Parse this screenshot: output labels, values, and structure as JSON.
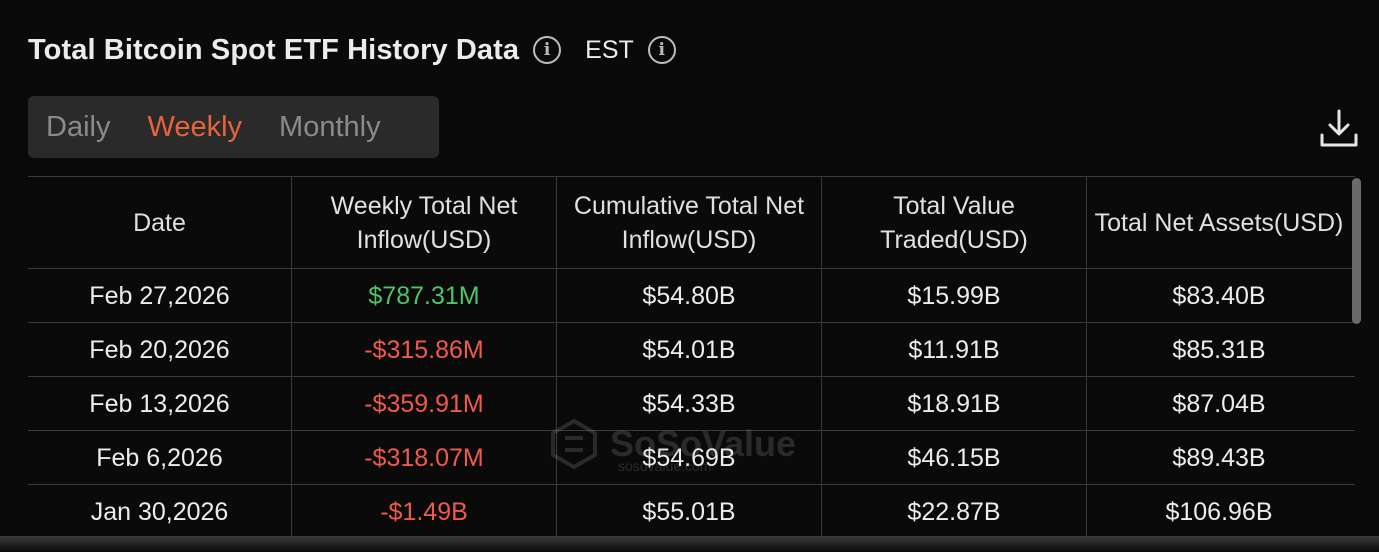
{
  "header": {
    "title": "Total Bitcoin Spot ETF History Data",
    "timezone": "EST"
  },
  "tabs": [
    {
      "label": "Daily",
      "active": false
    },
    {
      "label": "Weekly",
      "active": true
    },
    {
      "label": "Monthly",
      "active": false
    }
  ],
  "table": {
    "columns": [
      "Date",
      "Weekly Total Net Inflow(USD)",
      "Cumulative Total Net Inflow(USD)",
      "Total Value Traded(USD)",
      "Total Net Assets(USD)"
    ],
    "rows": [
      {
        "date": "Feb 27,2026",
        "weekly_net_inflow": "$787.31M",
        "cumulative_net_inflow": "$54.80B",
        "value_traded": "$15.99B",
        "net_assets": "$83.40B"
      },
      {
        "date": "Feb 20,2026",
        "weekly_net_inflow": "-$315.86M",
        "cumulative_net_inflow": "$54.01B",
        "value_traded": "$11.91B",
        "net_assets": "$85.31B"
      },
      {
        "date": "Feb 13,2026",
        "weekly_net_inflow": "-$359.91M",
        "cumulative_net_inflow": "$54.33B",
        "value_traded": "$18.91B",
        "net_assets": "$87.04B"
      },
      {
        "date": "Feb 6,2026",
        "weekly_net_inflow": "-$318.07M",
        "cumulative_net_inflow": "$54.69B",
        "value_traded": "$46.15B",
        "net_assets": "$89.43B"
      },
      {
        "date": "Jan 30,2026",
        "weekly_net_inflow": "-$1.49B",
        "cumulative_net_inflow": "$55.01B",
        "value_traded": "$22.87B",
        "net_assets": "$106.96B"
      }
    ]
  },
  "watermark": {
    "brand": "SoSoValue",
    "url": "sosovalue.com"
  },
  "colors": {
    "accent": "#e8643c",
    "positive": "#4ec36a",
    "negative": "#ef5a4a"
  },
  "icons": {
    "info": "info-icon",
    "download": "download-icon"
  }
}
